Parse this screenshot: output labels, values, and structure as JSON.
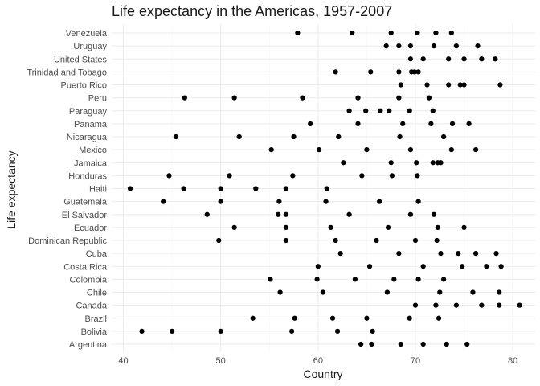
{
  "chart_data": {
    "type": "scatter",
    "title": "Life expectancy in the Americas, 1957-2007",
    "xlabel": "Country",
    "ylabel": "Life expectancy",
    "xlim": [
      38.8,
      82.3
    ],
    "x_ticks": [
      40,
      50,
      60,
      70,
      80
    ],
    "grid": true,
    "legend": "none",
    "point_color": "#000000",
    "categories": [
      "Argentina",
      "Bolivia",
      "Brazil",
      "Canada",
      "Chile",
      "Colombia",
      "Costa Rica",
      "Cuba",
      "Dominican Republic",
      "Ecuador",
      "El Salvador",
      "Guatemala",
      "Haiti",
      "Honduras",
      "Jamaica",
      "Mexico",
      "Nicaragua",
      "Panama",
      "Paraguay",
      "Peru",
      "Puerto Rico",
      "Trinidad and Tobago",
      "United States",
      "Uruguay",
      "Venezuela"
    ],
    "points": [
      {
        "category": "Argentina",
        "values": [
          64.4,
          65.5,
          68.5,
          70.8,
          73.2,
          75.3
        ]
      },
      {
        "category": "Bolivia",
        "values": [
          41.9,
          45.0,
          50.0,
          57.3,
          62.0,
          65.6
        ]
      },
      {
        "category": "Brazil",
        "values": [
          53.3,
          57.6,
          61.5,
          65.0,
          69.4,
          72.4
        ]
      },
      {
        "category": "Canada",
        "values": [
          70.0,
          72.1,
          74.2,
          76.8,
          78.6,
          80.7
        ]
      },
      {
        "category": "Chile",
        "values": [
          56.1,
          60.5,
          67.1,
          72.5,
          75.9,
          78.6
        ]
      },
      {
        "category": "Colombia",
        "values": [
          55.1,
          59.9,
          63.8,
          67.8,
          70.3,
          72.9
        ]
      },
      {
        "category": "Costa Rica",
        "values": [
          60.0,
          65.3,
          70.8,
          74.8,
          77.3,
          78.8
        ]
      },
      {
        "category": "Cuba",
        "values": [
          62.3,
          68.3,
          72.6,
          74.4,
          76.2,
          78.3
        ]
      },
      {
        "category": "Dominican Republic",
        "values": [
          49.8,
          56.7,
          61.8,
          66.0,
          70.0,
          72.2
        ]
      },
      {
        "category": "Ecuador",
        "values": [
          51.4,
          56.7,
          61.3,
          67.2,
          72.3,
          75.0
        ]
      },
      {
        "category": "El Salvador",
        "values": [
          48.6,
          55.9,
          56.7,
          63.2,
          69.5,
          71.9
        ]
      },
      {
        "category": "Guatemala",
        "values": [
          44.1,
          50.0,
          56.0,
          60.8,
          66.3,
          70.3
        ]
      },
      {
        "category": "Haiti",
        "values": [
          40.7,
          46.2,
          50.0,
          53.6,
          56.7,
          60.9
        ]
      },
      {
        "category": "Honduras",
        "values": [
          44.7,
          50.9,
          57.4,
          64.5,
          67.6,
          70.2
        ]
      },
      {
        "category": "Jamaica",
        "values": [
          62.6,
          67.5,
          70.1,
          71.8,
          72.3,
          72.6
        ]
      },
      {
        "category": "Mexico",
        "values": [
          55.2,
          60.1,
          65.0,
          69.5,
          73.7,
          76.2
        ]
      },
      {
        "category": "Nicaragua",
        "values": [
          45.4,
          51.9,
          57.5,
          62.1,
          68.4,
          72.9
        ]
      },
      {
        "category": "Panama",
        "values": [
          59.2,
          64.1,
          68.7,
          71.6,
          73.8,
          75.5
        ]
      },
      {
        "category": "Paraguay",
        "values": [
          63.2,
          64.9,
          66.4,
          67.3,
          69.4,
          71.8
        ]
      },
      {
        "category": "Peru",
        "values": [
          46.3,
          51.4,
          58.4,
          64.1,
          68.3,
          71.4
        ]
      },
      {
        "category": "Puerto Rico",
        "values": [
          68.5,
          71.2,
          73.4,
          74.6,
          75.0,
          78.7
        ]
      },
      {
        "category": "Trinidad and Tobago",
        "values": [
          61.8,
          65.4,
          68.3,
          69.6,
          69.9,
          70.3
        ]
      },
      {
        "category": "United States",
        "values": [
          69.5,
          70.8,
          73.4,
          75.0,
          76.8,
          78.2
        ]
      },
      {
        "category": "Uruguay",
        "values": [
          67.0,
          68.3,
          69.5,
          71.9,
          74.2,
          76.4
        ]
      },
      {
        "category": "Venezuela",
        "values": [
          57.9,
          63.5,
          67.5,
          70.2,
          72.1,
          73.7
        ]
      }
    ]
  }
}
